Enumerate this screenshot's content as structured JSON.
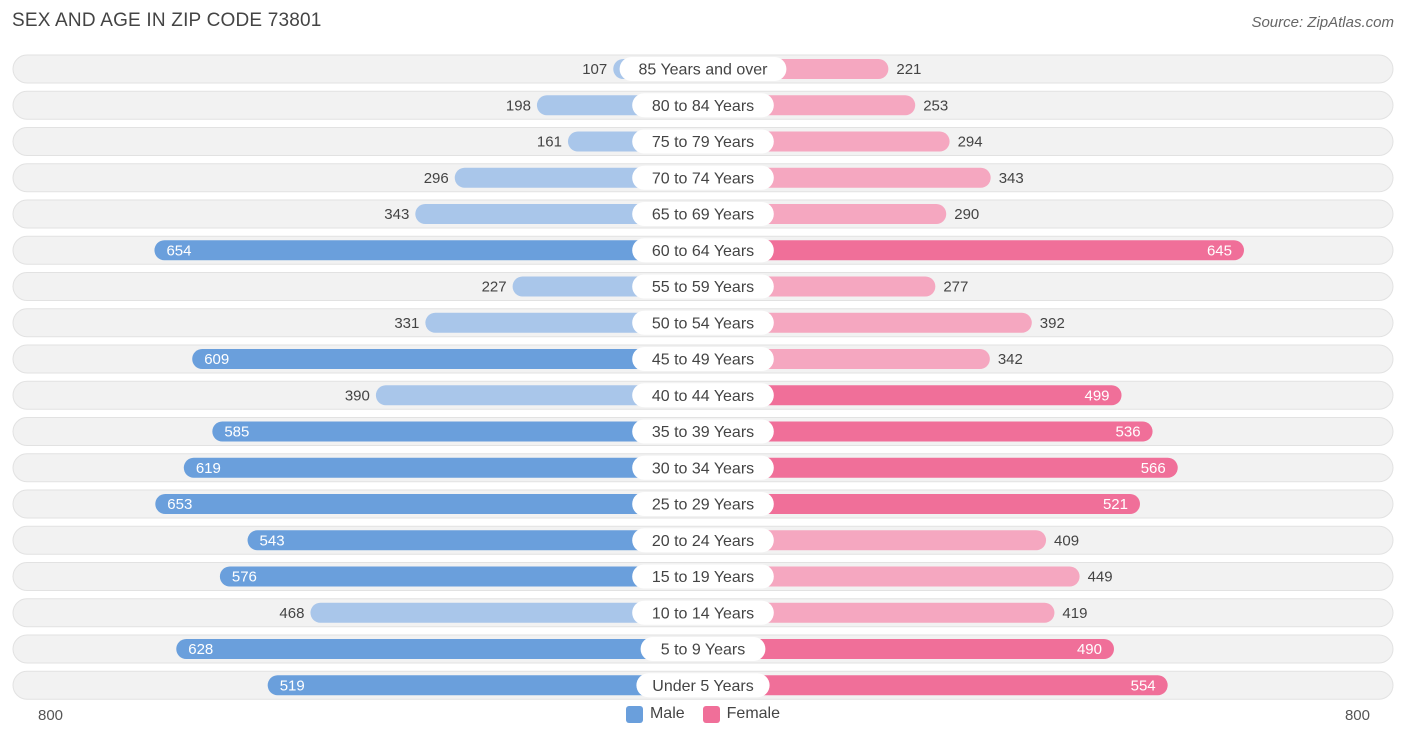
{
  "header": {
    "title": "SEX AND AGE IN ZIP CODE 73801",
    "source": "Source: ZipAtlas.com"
  },
  "legend": {
    "male_label": "Male",
    "female_label": "Female"
  },
  "axis": {
    "left_label": "800",
    "right_label": "800"
  },
  "colors": {
    "male_light": "#a9c6ea",
    "male_strong": "#6a9fdc",
    "female_light": "#f5a7c0",
    "female_strong": "#f06f99",
    "row_bg": "#f2f2f2"
  },
  "chart_data": {
    "type": "bar",
    "orientation": "horizontal-butterfly",
    "title": "SEX AND AGE IN ZIP CODE 73801",
    "xlim": [
      0,
      800
    ],
    "categories": [
      "85 Years and over",
      "80 to 84 Years",
      "75 to 79 Years",
      "70 to 74 Years",
      "65 to 69 Years",
      "60 to 64 Years",
      "55 to 59 Years",
      "50 to 54 Years",
      "45 to 49 Years",
      "40 to 44 Years",
      "35 to 39 Years",
      "30 to 34 Years",
      "25 to 29 Years",
      "20 to 24 Years",
      "15 to 19 Years",
      "10 to 14 Years",
      "5 to 9 Years",
      "Under 5 Years"
    ],
    "series": [
      {
        "name": "Male",
        "values": [
          107,
          198,
          161,
          296,
          343,
          654,
          227,
          331,
          609,
          390,
          585,
          619,
          653,
          543,
          576,
          468,
          628,
          519
        ]
      },
      {
        "name": "Female",
        "values": [
          221,
          253,
          294,
          343,
          290,
          645,
          277,
          392,
          342,
          499,
          536,
          566,
          521,
          409,
          449,
          419,
          490,
          554
        ]
      }
    ],
    "legend_position": "bottom-center"
  }
}
